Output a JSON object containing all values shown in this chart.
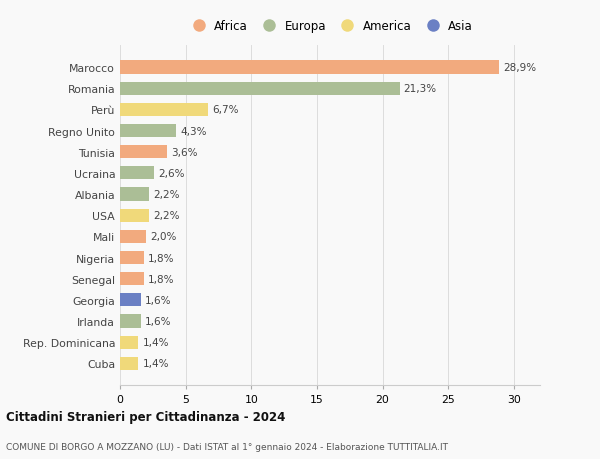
{
  "categories": [
    "Marocco",
    "Romania",
    "Perù",
    "Regno Unito",
    "Tunisia",
    "Ucraina",
    "Albania",
    "USA",
    "Mali",
    "Nigeria",
    "Senegal",
    "Georgia",
    "Irlanda",
    "Rep. Dominicana",
    "Cuba"
  ],
  "values": [
    28.9,
    21.3,
    6.7,
    4.3,
    3.6,
    2.6,
    2.2,
    2.2,
    2.0,
    1.8,
    1.8,
    1.6,
    1.6,
    1.4,
    1.4
  ],
  "labels": [
    "28,9%",
    "21,3%",
    "6,7%",
    "4,3%",
    "3,6%",
    "2,6%",
    "2,2%",
    "2,2%",
    "2,0%",
    "1,8%",
    "1,8%",
    "1,6%",
    "1,6%",
    "1,4%",
    "1,4%"
  ],
  "continents": [
    "Africa",
    "Europa",
    "America",
    "Europa",
    "Africa",
    "Europa",
    "Europa",
    "America",
    "Africa",
    "Africa",
    "Africa",
    "Asia",
    "Europa",
    "America",
    "America"
  ],
  "continent_colors": {
    "Africa": "#F2AA7E",
    "Europa": "#ABBE96",
    "America": "#F0D97A",
    "Asia": "#6B80C4"
  },
  "legend_order": [
    "Africa",
    "Europa",
    "America",
    "Asia"
  ],
  "xlim": [
    0,
    32
  ],
  "xticks": [
    0,
    5,
    10,
    15,
    20,
    25,
    30
  ],
  "title": "Cittadini Stranieri per Cittadinanza - 2024",
  "subtitle": "COMUNE DI BORGO A MOZZANO (LU) - Dati ISTAT al 1° gennaio 2024 - Elaborazione TUTTITALIA.IT",
  "background_color": "#F9F9F9",
  "bar_height": 0.62,
  "grid_color": "#DDDDDD"
}
